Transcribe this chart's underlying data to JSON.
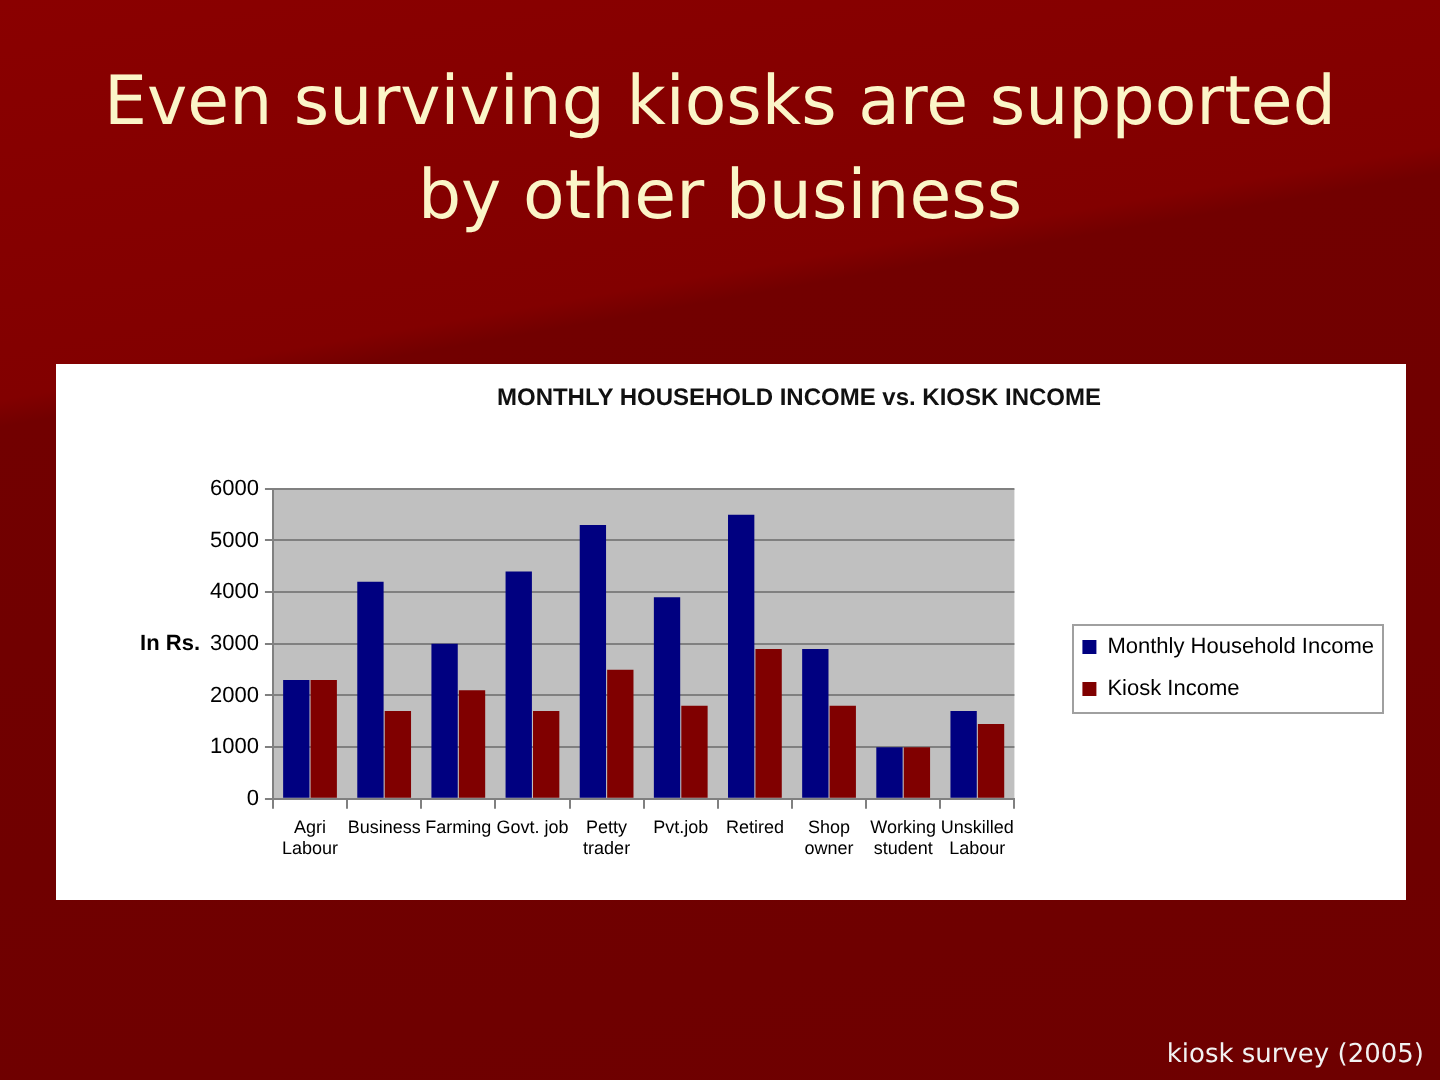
{
  "chart_data": {
    "type": "bar",
    "title": "Even surviving kiosks are supported by other business",
    "subtitle": "MONTHLY HOUSEHOLD INCOME vs. KIOSK INCOME",
    "ylabel": "In Rs.",
    "categories": [
      "Agri Labour",
      "Business",
      "Farming",
      "Govt. job",
      "Petty trader",
      "Pvt.job",
      "Retired",
      "Shop owner",
      "Working student",
      "Unskilled Labour"
    ],
    "series": [
      {
        "name": "Monthly Household Income",
        "color": "#000080",
        "values": [
          2300,
          4200,
          3000,
          4400,
          5300,
          3900,
          5500,
          2900,
          1000,
          1700
        ]
      },
      {
        "name": "Kiosk Income",
        "color": "#800000",
        "values": [
          2300,
          1700,
          2100,
          1700,
          2500,
          1800,
          2900,
          1800,
          1000,
          1450
        ]
      }
    ],
    "ylim": [
      0,
      6000
    ],
    "yticks": [
      0,
      1000,
      2000,
      3000,
      4000,
      5000,
      6000
    ],
    "grid": "y",
    "legend": "right",
    "annotations": [
      "kiosk survey (2005)"
    ]
  }
}
